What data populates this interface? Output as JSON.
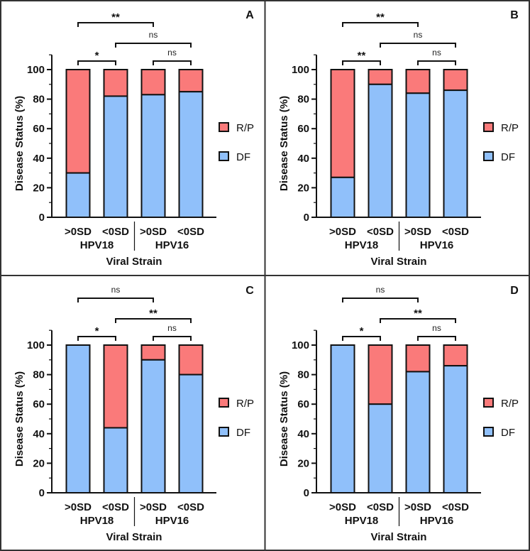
{
  "colors": {
    "df": "#90c0fa",
    "rp": "#fa7a7a",
    "axis": "#111111",
    "border": "#333333"
  },
  "chart_data": [
    {
      "panel": "A",
      "type": "bar",
      "stacked": true,
      "categories": [
        ">0SD",
        "<0SD",
        ">0SD",
        "<0SD"
      ],
      "groups": [
        {
          "label": "HPV18",
          "span": [
            0,
            1
          ]
        },
        {
          "label": "HPV16",
          "span": [
            2,
            3
          ]
        }
      ],
      "xlabel": "Viral Strain",
      "ylabel": "Disease Status (%)",
      "ylim": [
        0,
        110
      ],
      "yticks": [
        0,
        20,
        40,
        60,
        80,
        100
      ],
      "series": [
        {
          "name": "DF",
          "values": [
            30,
            82,
            83,
            85
          ]
        },
        {
          "name": "R/P",
          "values": [
            70,
            18,
            17,
            15
          ]
        }
      ],
      "legend": [
        "R/P",
        "DF"
      ],
      "legend_position": "right",
      "comparisons": [
        {
          "from": 0,
          "to": 1,
          "label": "*",
          "level": 0
        },
        {
          "from": 2,
          "to": 3,
          "label": "ns",
          "level": 0
        },
        {
          "from": 1,
          "to": 3,
          "label": "ns",
          "level": 1
        },
        {
          "from": 0,
          "to": 2,
          "label": "**",
          "level": 2
        }
      ]
    },
    {
      "panel": "B",
      "type": "bar",
      "stacked": true,
      "categories": [
        ">0SD",
        "<0SD",
        ">0SD",
        "<0SD"
      ],
      "groups": [
        {
          "label": "HPV18",
          "span": [
            0,
            1
          ]
        },
        {
          "label": "HPV16",
          "span": [
            2,
            3
          ]
        }
      ],
      "xlabel": "Viral Strain",
      "ylabel": "Disease Status (%)",
      "ylim": [
        0,
        110
      ],
      "yticks": [
        0,
        20,
        40,
        60,
        80,
        100
      ],
      "series": [
        {
          "name": "DF",
          "values": [
            27,
            90,
            84,
            86
          ]
        },
        {
          "name": "R/P",
          "values": [
            73,
            10,
            16,
            14
          ]
        }
      ],
      "legend": [
        "R/P",
        "DF"
      ],
      "legend_position": "right",
      "comparisons": [
        {
          "from": 0,
          "to": 1,
          "label": "**",
          "level": 0
        },
        {
          "from": 2,
          "to": 3,
          "label": "ns",
          "level": 0
        },
        {
          "from": 1,
          "to": 3,
          "label": "ns",
          "level": 1
        },
        {
          "from": 0,
          "to": 2,
          "label": "**",
          "level": 2
        }
      ]
    },
    {
      "panel": "C",
      "type": "bar",
      "stacked": true,
      "categories": [
        ">0SD",
        "<0SD",
        ">0SD",
        "<0SD"
      ],
      "groups": [
        {
          "label": "HPV18",
          "span": [
            0,
            1
          ]
        },
        {
          "label": "HPV16",
          "span": [
            2,
            3
          ]
        }
      ],
      "xlabel": "Viral Strain",
      "ylabel": "Disease Status (%)",
      "ylim": [
        0,
        110
      ],
      "yticks": [
        0,
        20,
        40,
        60,
        80,
        100
      ],
      "series": [
        {
          "name": "DF",
          "values": [
            100,
            44,
            90,
            80
          ]
        },
        {
          "name": "R/P",
          "values": [
            0,
            56,
            10,
            20
          ]
        }
      ],
      "legend": [
        "R/P",
        "DF"
      ],
      "legend_position": "right",
      "comparisons": [
        {
          "from": 0,
          "to": 1,
          "label": "*",
          "level": 0
        },
        {
          "from": 2,
          "to": 3,
          "label": "ns",
          "level": 0
        },
        {
          "from": 1,
          "to": 3,
          "label": "**",
          "level": 1
        },
        {
          "from": 0,
          "to": 2,
          "label": "ns",
          "level": 2
        }
      ]
    },
    {
      "panel": "D",
      "type": "bar",
      "stacked": true,
      "categories": [
        ">0SD",
        "<0SD",
        ">0SD",
        "<0SD"
      ],
      "groups": [
        {
          "label": "HPV18",
          "span": [
            0,
            1
          ]
        },
        {
          "label": "HPV16",
          "span": [
            2,
            3
          ]
        }
      ],
      "xlabel": "Viral Strain",
      "ylabel": "Disease Status (%)",
      "ylim": [
        0,
        110
      ],
      "yticks": [
        0,
        20,
        40,
        60,
        80,
        100
      ],
      "series": [
        {
          "name": "DF",
          "values": [
            100,
            60,
            82,
            86
          ]
        },
        {
          "name": "R/P",
          "values": [
            0,
            40,
            18,
            14
          ]
        }
      ],
      "legend": [
        "R/P",
        "DF"
      ],
      "legend_position": "right",
      "comparisons": [
        {
          "from": 0,
          "to": 1,
          "label": "*",
          "level": 0
        },
        {
          "from": 2,
          "to": 3,
          "label": "ns",
          "level": 0
        },
        {
          "from": 1,
          "to": 3,
          "label": "**",
          "level": 1
        },
        {
          "from": 0,
          "to": 2,
          "label": "ns",
          "level": 2
        }
      ]
    }
  ]
}
